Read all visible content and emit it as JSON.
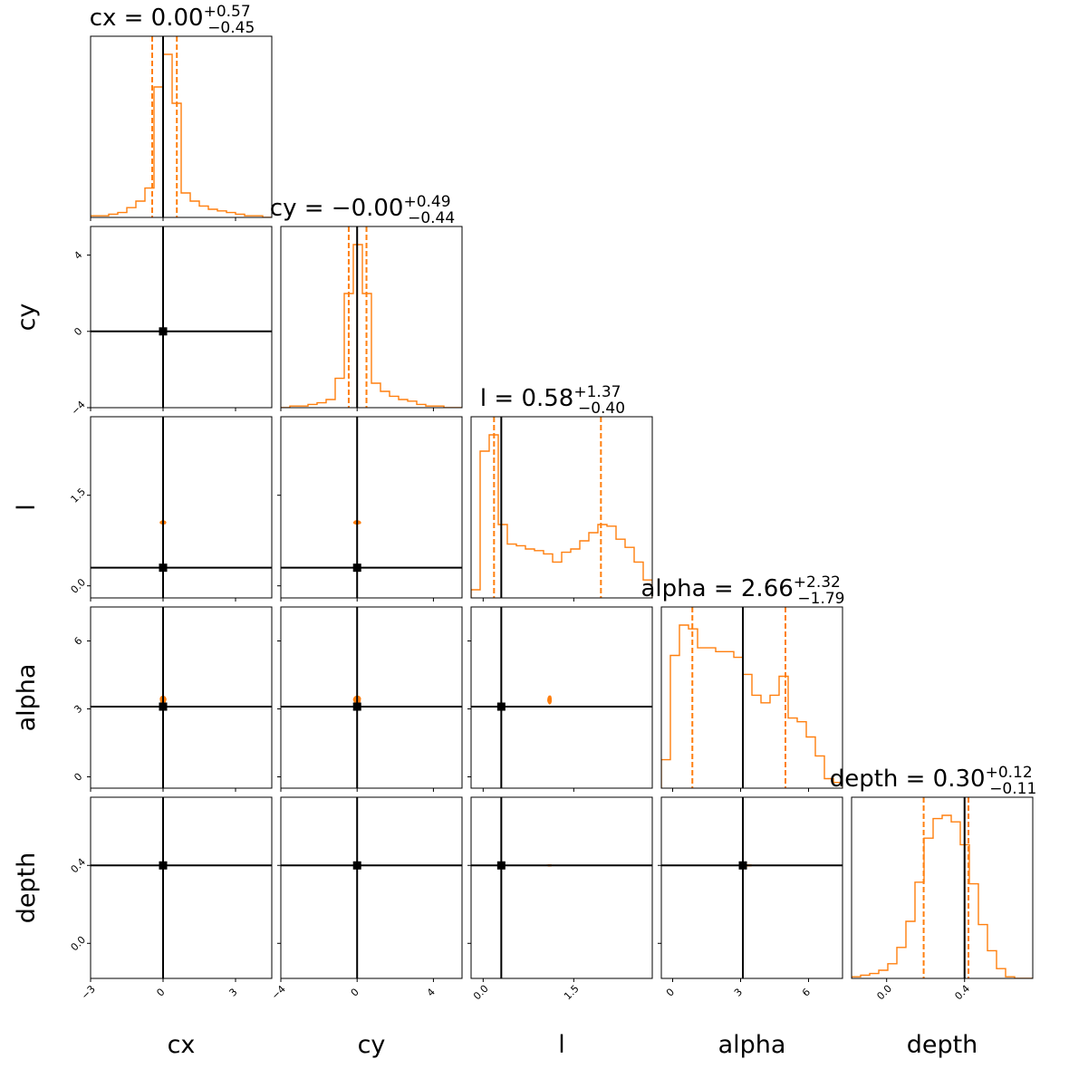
{
  "figure": {
    "type": "corner_plot",
    "colors": {
      "hist": "#ff7f0e",
      "fill_outer": "#ffddc0",
      "fill_mid": "#ffbb80",
      "fill_inner": "#ff7f0e",
      "truth": "#000000"
    }
  },
  "chart_data": {
    "type": "corner",
    "params": [
      {
        "name": "cx",
        "label": "cx",
        "title": "cx = 0.00",
        "plus": "+0.57",
        "minus": "−0.45",
        "median": 0.0,
        "q_lo": -0.45,
        "q_hi": 0.57,
        "truth": 0.0,
        "range": [
          -3.0,
          4.5
        ],
        "ticks": [
          -3,
          0,
          3
        ],
        "tick_labels": [
          "−3",
          "0",
          "3"
        ],
        "grid": false
      },
      {
        "name": "cy",
        "label": "cy",
        "title": "cy = −0.00",
        "plus": "+0.49",
        "minus": "−0.44",
        "median": 0.0,
        "q_lo": -0.44,
        "q_hi": 0.49,
        "truth": 0.0,
        "range": [
          -4.0,
          5.5
        ],
        "ticks": [
          -4,
          0,
          4
        ],
        "tick_labels": [
          "−4",
          "0",
          "4"
        ],
        "grid": false
      },
      {
        "name": "l",
        "label": "l",
        "title": "l = 0.58",
        "plus": "+1.37",
        "minus": "−0.40",
        "median": 0.58,
        "q_lo": 0.18,
        "q_hi": 1.95,
        "truth": 0.3,
        "range": [
          -0.2,
          2.8
        ],
        "ticks": [
          0.0,
          1.5
        ],
        "tick_labels": [
          "0.0",
          "1.5"
        ],
        "grid": false
      },
      {
        "name": "alpha",
        "label": "alpha",
        "title": "alpha = 2.66",
        "plus": "+2.32",
        "minus": "−1.79",
        "median": 2.66,
        "q_lo": 0.87,
        "q_hi": 4.98,
        "truth": 3.1,
        "range": [
          -0.5,
          7.5
        ],
        "ticks": [
          0,
          3,
          6
        ],
        "tick_labels": [
          "0",
          "3",
          "6"
        ],
        "grid": false
      },
      {
        "name": "depth",
        "label": "depth",
        "title": "depth = 0.30",
        "plus": "+0.12",
        "minus": "−0.11",
        "median": 0.3,
        "q_lo": 0.19,
        "q_hi": 0.42,
        "truth": 0.4,
        "range": [
          -0.18,
          0.75
        ],
        "ticks": [
          0.0,
          0.4
        ],
        "tick_labels": [
          "0.0",
          "0.4"
        ],
        "grid": false
      }
    ],
    "histograms": [
      {
        "param": "cx",
        "counts": [
          1,
          1,
          2,
          3,
          6,
          10,
          18,
          80,
          100,
          70,
          15,
          10,
          7,
          5,
          4,
          3,
          2,
          1,
          1,
          0
        ]
      },
      {
        "param": "cy",
        "counts": [
          0,
          1,
          1,
          2,
          3,
          5,
          18,
          70,
          100,
          70,
          15,
          10,
          7,
          5,
          4,
          2,
          1,
          1,
          0,
          0
        ]
      },
      {
        "param": "l",
        "counts": [
          5,
          90,
          100,
          45,
          33,
          32,
          30,
          29,
          27,
          22,
          28,
          30,
          35,
          40,
          45,
          44,
          36,
          31,
          22,
          11
        ]
      },
      {
        "param": "alpha",
        "counts": [
          15,
          70,
          86,
          84,
          74,
          74,
          72,
          72,
          69,
          60,
          49,
          45,
          49,
          59,
          37,
          35,
          27,
          17,
          5,
          3
        ]
      },
      {
        "param": "depth",
        "counts": [
          1,
          2,
          3,
          5,
          9,
          19,
          35,
          59,
          86,
          98,
          100,
          96,
          82,
          58,
          33,
          17,
          6,
          1,
          0,
          0
        ]
      }
    ],
    "contour_levels": [
      "outer",
      "mid",
      "inner"
    ]
  }
}
